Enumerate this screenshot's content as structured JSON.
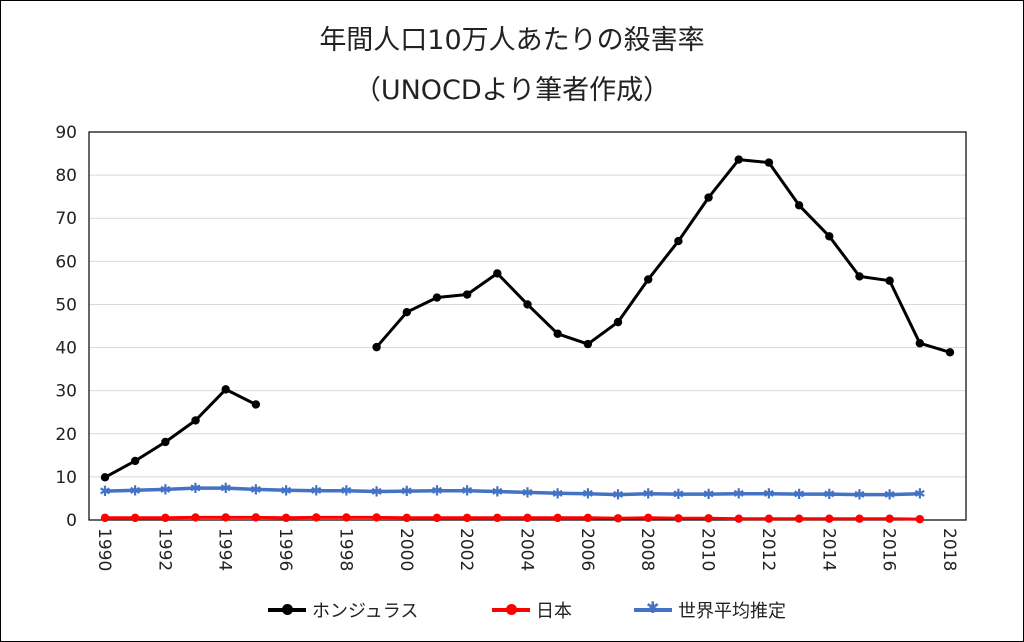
{
  "title_line1": "年間人口10万人あたりの殺害率",
  "title_line2": "（UNOCDより筆者作成）",
  "legend": {
    "honduras": "ホンジュラス",
    "japan": "日本",
    "world": "世界平均推定"
  },
  "colors": {
    "honduras": "#000000",
    "japan": "#ff0000",
    "world": "#4472c4",
    "grid": "#d9d9d9"
  },
  "chart_data": {
    "type": "line",
    "xlim": [
      1990,
      2018
    ],
    "ylim": [
      0,
      90
    ],
    "yticks": [
      0,
      10,
      20,
      30,
      40,
      50,
      60,
      70,
      80,
      90
    ],
    "xticks": [
      1990,
      1992,
      1994,
      1996,
      1998,
      2000,
      2002,
      2004,
      2006,
      2008,
      2010,
      2012,
      2014,
      2016,
      2018
    ],
    "grid": true,
    "legend_position": "bottom",
    "series": [
      {
        "key": "honduras",
        "name": "ホンジュラス",
        "marker": "circle",
        "points": [
          [
            1990,
            9.9
          ],
          [
            1991,
            13.7
          ],
          [
            1992,
            18.1
          ],
          [
            1993,
            23.1
          ],
          [
            1994,
            30.3
          ],
          [
            1995,
            26.8
          ],
          [
            1999,
            40.1
          ],
          [
            2000,
            48.2
          ],
          [
            2001,
            51.6
          ],
          [
            2002,
            52.3
          ],
          [
            2003,
            57.2
          ],
          [
            2004,
            50.0
          ],
          [
            2005,
            43.2
          ],
          [
            2006,
            40.8
          ],
          [
            2007,
            45.9
          ],
          [
            2008,
            55.8
          ],
          [
            2009,
            64.7
          ],
          [
            2010,
            74.8
          ],
          [
            2011,
            83.6
          ],
          [
            2012,
            82.9
          ],
          [
            2013,
            73.0
          ],
          [
            2014,
            65.8
          ],
          [
            2015,
            56.5
          ],
          [
            2016,
            55.5
          ],
          [
            2017,
            41.0
          ],
          [
            2018,
            38.9
          ]
        ]
      },
      {
        "key": "japan",
        "name": "日本",
        "marker": "circle",
        "points": [
          [
            1990,
            0.5
          ],
          [
            1991,
            0.5
          ],
          [
            1992,
            0.5
          ],
          [
            1993,
            0.6
          ],
          [
            1994,
            0.6
          ],
          [
            1995,
            0.6
          ],
          [
            1996,
            0.5
          ],
          [
            1997,
            0.6
          ],
          [
            1998,
            0.6
          ],
          [
            1999,
            0.6
          ],
          [
            2000,
            0.5
          ],
          [
            2001,
            0.5
          ],
          [
            2002,
            0.5
          ],
          [
            2003,
            0.5
          ],
          [
            2004,
            0.5
          ],
          [
            2005,
            0.5
          ],
          [
            2006,
            0.5
          ],
          [
            2007,
            0.4
          ],
          [
            2008,
            0.5
          ],
          [
            2009,
            0.4
          ],
          [
            2010,
            0.4
          ],
          [
            2011,
            0.3
          ],
          [
            2012,
            0.3
          ],
          [
            2013,
            0.3
          ],
          [
            2014,
            0.3
          ],
          [
            2015,
            0.3
          ],
          [
            2016,
            0.3
          ],
          [
            2017,
            0.2
          ]
        ]
      },
      {
        "key": "world",
        "name": "世界平均推定",
        "marker": "star",
        "points": [
          [
            1990,
            6.7
          ],
          [
            1991,
            6.9
          ],
          [
            1992,
            7.1
          ],
          [
            1993,
            7.4
          ],
          [
            1994,
            7.4
          ],
          [
            1995,
            7.1
          ],
          [
            1996,
            6.9
          ],
          [
            1997,
            6.8
          ],
          [
            1998,
            6.8
          ],
          [
            1999,
            6.6
          ],
          [
            2000,
            6.7
          ],
          [
            2001,
            6.8
          ],
          [
            2002,
            6.8
          ],
          [
            2003,
            6.6
          ],
          [
            2004,
            6.4
          ],
          [
            2005,
            6.2
          ],
          [
            2006,
            6.1
          ],
          [
            2007,
            5.9
          ],
          [
            2008,
            6.1
          ],
          [
            2009,
            6.0
          ],
          [
            2010,
            6.0
          ],
          [
            2011,
            6.1
          ],
          [
            2012,
            6.1
          ],
          [
            2013,
            6.0
          ],
          [
            2014,
            6.0
          ],
          [
            2015,
            5.9
          ],
          [
            2016,
            5.9
          ],
          [
            2017,
            6.1
          ]
        ]
      }
    ]
  }
}
